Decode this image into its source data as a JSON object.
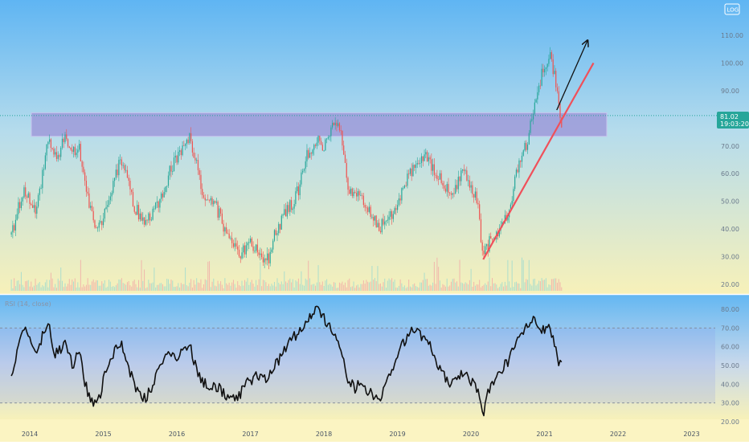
{
  "top_right_button": "LOG",
  "colors": {
    "up": "#26a69a",
    "down": "#ef5350",
    "trendline": "#f0505a",
    "arrow": "#111111",
    "zone_fill": "#9a8fd6",
    "rsi_line": "#111111",
    "last_price_bg": "#26a69a"
  },
  "rsi_title": "RSI (14, close)",
  "last_price": {
    "value": "81.02",
    "countdown": "19:03:20"
  },
  "chart_data": [
    {
      "type": "candlestick",
      "name": "price",
      "x_tick_labels": [
        "2014",
        "2015",
        "2016",
        "2017",
        "2018",
        "2019",
        "2020",
        "2021",
        "2022",
        "2023"
      ],
      "y_tick_labels": [
        "110.00",
        "100.00",
        "90.00",
        "80.00",
        "70.00",
        "60.00",
        "50.00",
        "40.00",
        "30.00",
        "20.00"
      ],
      "ylim": [
        17,
        110
      ],
      "resistance_zone": {
        "from": 73.5,
        "to": 82
      },
      "trendline": {
        "from": [
          "2020-03",
          29
        ],
        "to": [
          "2021-09",
          100
        ]
      },
      "arrow": {
        "from": [
          "2021-03",
          83
        ],
        "to": [
          "2021-08",
          108
        ]
      },
      "weekly_close_anchors": [
        [
          "2013-10",
          38
        ],
        [
          "2013-12",
          55
        ],
        [
          "2014-02",
          45
        ],
        [
          "2014-04",
          72
        ],
        [
          "2014-05",
          65
        ],
        [
          "2014-07",
          73
        ],
        [
          "2014-08",
          68
        ],
        [
          "2014-09",
          70
        ],
        [
          "2014-10",
          55
        ],
        [
          "2014-11",
          46
        ],
        [
          "2014-12",
          40
        ],
        [
          "2015-01",
          45
        ],
        [
          "2015-02",
          50
        ],
        [
          "2015-03",
          60
        ],
        [
          "2015-04",
          65
        ],
        [
          "2015-05",
          60
        ],
        [
          "2015-06",
          48
        ],
        [
          "2015-07",
          45
        ],
        [
          "2015-08",
          42
        ],
        [
          "2015-09",
          45
        ],
        [
          "2015-10",
          50
        ],
        [
          "2015-11",
          55
        ],
        [
          "2015-12",
          62
        ],
        [
          "2016-01",
          65
        ],
        [
          "2016-02",
          70
        ],
        [
          "2016-03",
          73
        ],
        [
          "2016-04",
          65
        ],
        [
          "2016-05",
          55
        ],
        [
          "2016-06",
          50
        ],
        [
          "2016-07",
          50
        ],
        [
          "2016-08",
          45
        ],
        [
          "2016-09",
          38
        ],
        [
          "2016-10",
          35
        ],
        [
          "2016-11",
          30
        ],
        [
          "2016-12",
          33
        ],
        [
          "2017-01",
          35
        ],
        [
          "2017-02",
          32
        ],
        [
          "2017-03",
          28
        ],
        [
          "2017-04",
          30
        ],
        [
          "2017-05",
          38
        ],
        [
          "2017-06",
          42
        ],
        [
          "2017-07",
          48
        ],
        [
          "2017-08",
          50
        ],
        [
          "2017-09",
          55
        ],
        [
          "2017-10",
          65
        ],
        [
          "2017-11",
          70
        ],
        [
          "2017-12",
          72
        ],
        [
          "2018-01",
          70
        ],
        [
          "2018-02",
          75
        ],
        [
          "2018-03",
          78
        ],
        [
          "2018-04",
          72
        ],
        [
          "2018-05",
          55
        ],
        [
          "2018-06",
          52
        ],
        [
          "2018-07",
          53
        ],
        [
          "2018-08",
          48
        ],
        [
          "2018-09",
          45
        ],
        [
          "2018-10",
          40
        ],
        [
          "2018-11",
          43
        ],
        [
          "2018-12",
          45
        ],
        [
          "2019-01",
          50
        ],
        [
          "2019-02",
          55
        ],
        [
          "2019-03",
          60
        ],
        [
          "2019-04",
          63
        ],
        [
          "2019-05",
          66
        ],
        [
          "2019-06",
          65
        ],
        [
          "2019-07",
          62
        ],
        [
          "2019-08",
          58
        ],
        [
          "2019-09",
          55
        ],
        [
          "2019-10",
          52
        ],
        [
          "2019-11",
          58
        ],
        [
          "2019-12",
          60
        ],
        [
          "2020-01",
          55
        ],
        [
          "2020-02",
          50
        ],
        [
          "2020-03",
          30
        ],
        [
          "2020-04",
          35
        ],
        [
          "2020-05",
          38
        ],
        [
          "2020-06",
          42
        ],
        [
          "2020-07",
          45
        ],
        [
          "2020-08",
          55
        ],
        [
          "2020-09",
          65
        ],
        [
          "2020-10",
          70
        ],
        [
          "2020-11",
          80
        ],
        [
          "2020-12",
          90
        ],
        [
          "2021-01",
          100
        ],
        [
          "2021-02",
          103
        ],
        [
          "2021-03",
          90
        ],
        [
          "2021-04",
          76
        ]
      ]
    },
    {
      "type": "line",
      "name": "RSI (14, close)",
      "y_tick_labels": [
        "80.00",
        "70.00",
        "60.00",
        "50.00",
        "40.00",
        "30.00",
        "20.00"
      ],
      "ylim": [
        18,
        84
      ],
      "band": [
        30,
        70
      ],
      "anchors": [
        [
          "2013-10",
          45
        ],
        [
          "2013-12",
          70
        ],
        [
          "2014-02",
          55
        ],
        [
          "2014-04",
          75
        ],
        [
          "2014-05",
          55
        ],
        [
          "2014-07",
          62
        ],
        [
          "2014-08",
          50
        ],
        [
          "2014-09",
          58
        ],
        [
          "2014-10",
          40
        ],
        [
          "2014-11",
          32
        ],
        [
          "2014-12",
          28
        ],
        [
          "2015-01",
          42
        ],
        [
          "2015-02",
          50
        ],
        [
          "2015-03",
          58
        ],
        [
          "2015-04",
          62
        ],
        [
          "2015-05",
          50
        ],
        [
          "2015-06",
          40
        ],
        [
          "2015-07",
          35
        ],
        [
          "2015-08",
          32
        ],
        [
          "2015-09",
          40
        ],
        [
          "2015-10",
          48
        ],
        [
          "2015-11",
          52
        ],
        [
          "2015-12",
          58
        ],
        [
          "2016-01",
          55
        ],
        [
          "2016-02",
          58
        ],
        [
          "2016-03",
          62
        ],
        [
          "2016-04",
          50
        ],
        [
          "2016-05",
          42
        ],
        [
          "2016-06",
          40
        ],
        [
          "2016-07",
          40
        ],
        [
          "2016-08",
          38
        ],
        [
          "2016-09",
          33
        ],
        [
          "2016-10",
          35
        ],
        [
          "2016-11",
          32
        ],
        [
          "2016-12",
          40
        ],
        [
          "2017-01",
          42
        ],
        [
          "2017-02",
          45
        ],
        [
          "2017-03",
          42
        ],
        [
          "2017-04",
          45
        ],
        [
          "2017-05",
          50
        ],
        [
          "2017-06",
          55
        ],
        [
          "2017-07",
          60
        ],
        [
          "2017-08",
          65
        ],
        [
          "2017-09",
          68
        ],
        [
          "2017-10",
          72
        ],
        [
          "2017-11",
          78
        ],
        [
          "2017-12",
          80
        ],
        [
          "2018-01",
          76
        ],
        [
          "2018-02",
          70
        ],
        [
          "2018-03",
          65
        ],
        [
          "2018-04",
          55
        ],
        [
          "2018-05",
          42
        ],
        [
          "2018-06",
          38
        ],
        [
          "2018-07",
          40
        ],
        [
          "2018-08",
          36
        ],
        [
          "2018-09",
          34
        ],
        [
          "2018-10",
          30
        ],
        [
          "2018-11",
          40
        ],
        [
          "2018-12",
          45
        ],
        [
          "2019-01",
          55
        ],
        [
          "2019-02",
          62
        ],
        [
          "2019-03",
          68
        ],
        [
          "2019-04",
          70
        ],
        [
          "2019-05",
          65
        ],
        [
          "2019-06",
          62
        ],
        [
          "2019-07",
          55
        ],
        [
          "2019-08",
          48
        ],
        [
          "2019-09",
          42
        ],
        [
          "2019-10",
          40
        ],
        [
          "2019-11",
          45
        ],
        [
          "2019-12",
          47
        ],
        [
          "2020-01",
          42
        ],
        [
          "2020-02",
          38
        ],
        [
          "2020-03",
          24
        ],
        [
          "2020-04",
          38
        ],
        [
          "2020-05",
          42
        ],
        [
          "2020-06",
          48
        ],
        [
          "2020-07",
          52
        ],
        [
          "2020-08",
          58
        ],
        [
          "2020-09",
          65
        ],
        [
          "2020-10",
          70
        ],
        [
          "2020-11",
          75
        ],
        [
          "2020-12",
          72
        ],
        [
          "2021-01",
          68
        ],
        [
          "2021-02",
          70
        ],
        [
          "2021-03",
          55
        ],
        [
          "2021-04",
          48
        ]
      ]
    }
  ]
}
